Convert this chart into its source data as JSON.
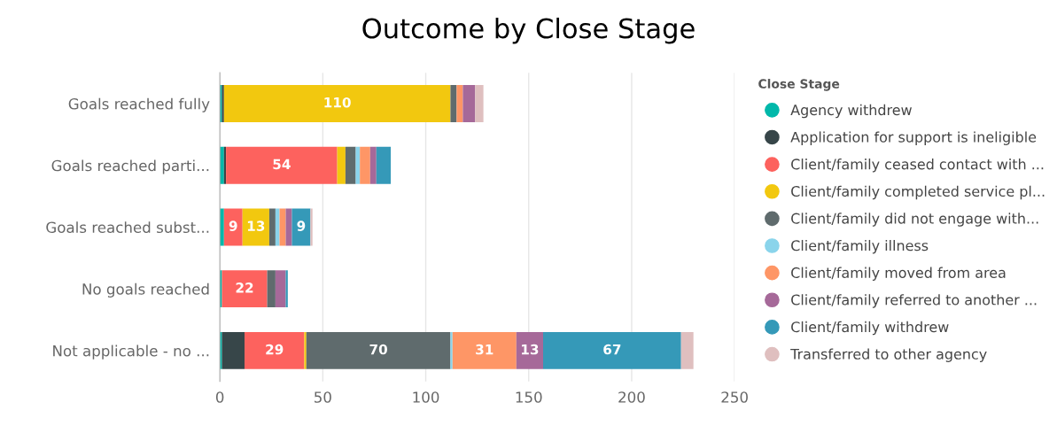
{
  "chart_data": {
    "type": "bar",
    "orientation": "horizontal",
    "stacked": true,
    "title": "Outcome by Close Stage",
    "legend_title": "Close Stage",
    "categories": [
      "Goals reached fully",
      "Goals reached parti...",
      "Goals reached subst...",
      "No goals reached",
      "Not applicable - no ..."
    ],
    "series": [
      {
        "name": "Agency withdrew",
        "color": "#01b8aa",
        "values": [
          1,
          2,
          2,
          1,
          1
        ],
        "value_labels": [
          null,
          null,
          null,
          null,
          null
        ]
      },
      {
        "name": "Application for support is ineligible",
        "color": "#374649",
        "values": [
          1,
          1,
          null,
          null,
          11
        ],
        "value_labels": [
          null,
          null,
          null,
          null,
          null
        ]
      },
      {
        "name": "Client/family ceased contact with ...",
        "color": "#fd625e",
        "values": [
          null,
          54,
          9,
          22,
          29
        ],
        "value_labels": [
          null,
          "54",
          "9",
          "22",
          "29"
        ]
      },
      {
        "name": "Client/family completed service pl...",
        "color": "#f2c80f",
        "values": [
          110,
          4,
          13,
          null,
          1
        ],
        "value_labels": [
          "110",
          null,
          "13",
          null,
          null
        ]
      },
      {
        "name": "Client/family did not engage with...",
        "color": "#5f6b6d",
        "values": [
          3,
          5,
          3,
          4,
          70
        ],
        "value_labels": [
          null,
          null,
          null,
          null,
          "70"
        ]
      },
      {
        "name": "Client/family illness",
        "color": "#8ad4eb",
        "values": [
          null,
          2,
          2,
          null,
          1
        ],
        "value_labels": [
          null,
          null,
          null,
          null,
          null
        ]
      },
      {
        "name": "Client/family moved from area",
        "color": "#fe9666",
        "values": [
          3,
          5,
          3,
          null,
          31
        ],
        "value_labels": [
          null,
          null,
          null,
          null,
          "31"
        ]
      },
      {
        "name": "Client/family referred to another ...",
        "color": "#a66999",
        "values": [
          6,
          3,
          3,
          5,
          13
        ],
        "value_labels": [
          null,
          null,
          null,
          null,
          "13"
        ]
      },
      {
        "name": "Client/family withdrew",
        "color": "#3599b8",
        "values": [
          null,
          7,
          9,
          1,
          67
        ],
        "value_labels": [
          null,
          null,
          "9",
          null,
          "67"
        ]
      },
      {
        "name": "Transferred to other agency",
        "color": "#dfbfbf",
        "values": [
          4,
          null,
          1,
          null,
          6
        ],
        "value_labels": [
          null,
          null,
          null,
          null,
          null
        ]
      }
    ],
    "xlim": [
      0,
      250
    ],
    "xticks": [
      0,
      50,
      100,
      150,
      200,
      250
    ],
    "grid": "x",
    "legend": "right",
    "marker": "circle"
  }
}
